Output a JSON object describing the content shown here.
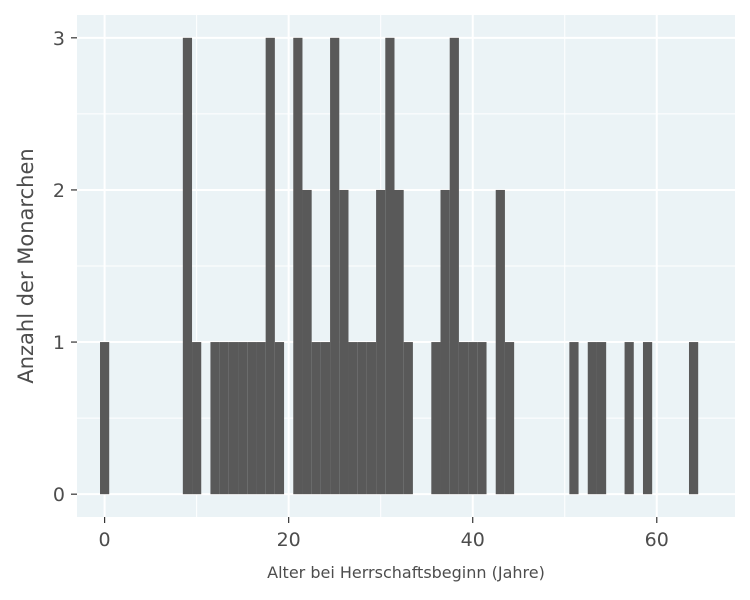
{
  "chart_data": {
    "type": "bar",
    "subtype": "histogram",
    "xlabel": "Alter bei Herrschaftsbeginn (Jahre)",
    "ylabel": "Anzahl der Monarchen",
    "xlim": [
      -3,
      68.5
    ],
    "ylim": [
      -0.15,
      3.15
    ],
    "x_ticks": [
      0,
      20,
      40,
      60
    ],
    "y_ticks": [
      0,
      1,
      2,
      3
    ],
    "bin_width": 1,
    "bins": [
      {
        "x": 0,
        "count": 1
      },
      {
        "x": 9,
        "count": 3
      },
      {
        "x": 10,
        "count": 1
      },
      {
        "x": 12,
        "count": 1
      },
      {
        "x": 13,
        "count": 1
      },
      {
        "x": 14,
        "count": 1
      },
      {
        "x": 15,
        "count": 1
      },
      {
        "x": 16,
        "count": 1
      },
      {
        "x": 17,
        "count": 1
      },
      {
        "x": 18,
        "count": 3
      },
      {
        "x": 19,
        "count": 1
      },
      {
        "x": 21,
        "count": 3
      },
      {
        "x": 22,
        "count": 2
      },
      {
        "x": 23,
        "count": 1
      },
      {
        "x": 24,
        "count": 1
      },
      {
        "x": 25,
        "count": 3
      },
      {
        "x": 26,
        "count": 2
      },
      {
        "x": 27,
        "count": 1
      },
      {
        "x": 28,
        "count": 1
      },
      {
        "x": 29,
        "count": 1
      },
      {
        "x": 30,
        "count": 2
      },
      {
        "x": 31,
        "count": 3
      },
      {
        "x": 32,
        "count": 2
      },
      {
        "x": 33,
        "count": 1
      },
      {
        "x": 36,
        "count": 1
      },
      {
        "x": 37,
        "count": 2
      },
      {
        "x": 38,
        "count": 3
      },
      {
        "x": 39,
        "count": 1
      },
      {
        "x": 40,
        "count": 1
      },
      {
        "x": 41,
        "count": 1
      },
      {
        "x": 43,
        "count": 2
      },
      {
        "x": 44,
        "count": 1
      },
      {
        "x": 51,
        "count": 1
      },
      {
        "x": 53,
        "count": 1
      },
      {
        "x": 54,
        "count": 1
      },
      {
        "x": 57,
        "count": 1
      },
      {
        "x": 59,
        "count": 1
      },
      {
        "x": 64,
        "count": 1
      }
    ],
    "colors": {
      "bar": "#595959",
      "panel_background": "#ebf3f6",
      "grid": "#ffffff",
      "axis_text": "#4d4d4d"
    },
    "grid": true,
    "legend": "none"
  }
}
